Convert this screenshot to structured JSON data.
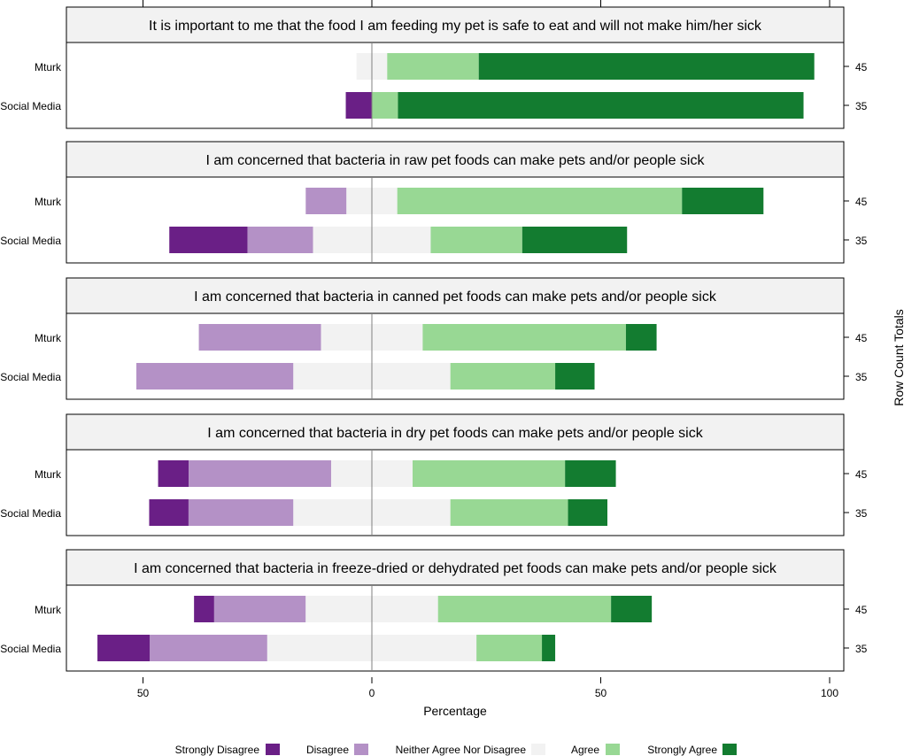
{
  "chart_data": {
    "type": "diverging-stacked-bar",
    "xlabel": "Percentage",
    "right_axis_label": "Row Count Totals",
    "x_ticks": [
      {
        "value": -50,
        "label": "50"
      },
      {
        "value": 0,
        "label": "0"
      },
      {
        "value": 50,
        "label": "50"
      },
      {
        "value": 100,
        "label": "100"
      }
    ],
    "xlim": [
      -67,
      103
    ],
    "legend": {
      "position": "bottom",
      "items": [
        {
          "name": "Strongly Disagree",
          "color": "#6a1f86"
        },
        {
          "name": "Disagree",
          "color": "#b491c6"
        },
        {
          "name": "Neither Agree Nor Disagree",
          "color": "#f2f2f2"
        },
        {
          "name": "Agree",
          "color": "#98d894"
        },
        {
          "name": "Strongly Agree",
          "color": "#137c30"
        }
      ]
    },
    "panels": [
      {
        "title": "It is important to me that the food I am feeding my pet is safe to eat and will not make him/her sick",
        "rows": [
          {
            "label": "Mturk",
            "total": "45",
            "values": [
              0,
              0,
              6.7,
              20.0,
              73.3
            ]
          },
          {
            "label": "Social Media",
            "total": "35",
            "values": [
              5.7,
              0,
              0,
              5.7,
              88.6
            ]
          }
        ]
      },
      {
        "title": "I am concerned that bacteria in raw pet foods can make pets and/or people sick",
        "rows": [
          {
            "label": "Mturk",
            "total": "45",
            "values": [
              0,
              8.9,
              11.1,
              62.2,
              17.8
            ]
          },
          {
            "label": "Social Media",
            "total": "35",
            "values": [
              17.1,
              14.3,
              25.7,
              20.0,
              22.9
            ]
          }
        ]
      },
      {
        "title": "I am concerned that bacteria in canned pet foods can make pets and/or people sick",
        "rows": [
          {
            "label": "Mturk",
            "total": "45",
            "values": [
              0,
              26.7,
              22.2,
              44.4,
              6.7
            ]
          },
          {
            "label": "Social Media",
            "total": "35",
            "values": [
              0,
              34.3,
              34.3,
              22.9,
              8.6
            ]
          }
        ]
      },
      {
        "title": "I am concerned that bacteria in dry pet foods can make pets and/or people sick",
        "rows": [
          {
            "label": "Mturk",
            "total": "45",
            "values": [
              6.7,
              31.1,
              17.8,
              33.3,
              11.1
            ]
          },
          {
            "label": "Social Media",
            "total": "35",
            "values": [
              8.6,
              22.9,
              34.3,
              25.7,
              8.6
            ]
          }
        ]
      },
      {
        "title": "I am concerned that bacteria in freeze-dried or dehydrated pet foods can make pets and/or people sick",
        "rows": [
          {
            "label": "Mturk",
            "total": "45",
            "values": [
              4.4,
              20.0,
              28.9,
              37.8,
              8.9
            ]
          },
          {
            "label": "Social Media",
            "total": "35",
            "values": [
              11.4,
              25.7,
              45.7,
              14.3,
              2.9
            ]
          }
        ]
      }
    ]
  }
}
